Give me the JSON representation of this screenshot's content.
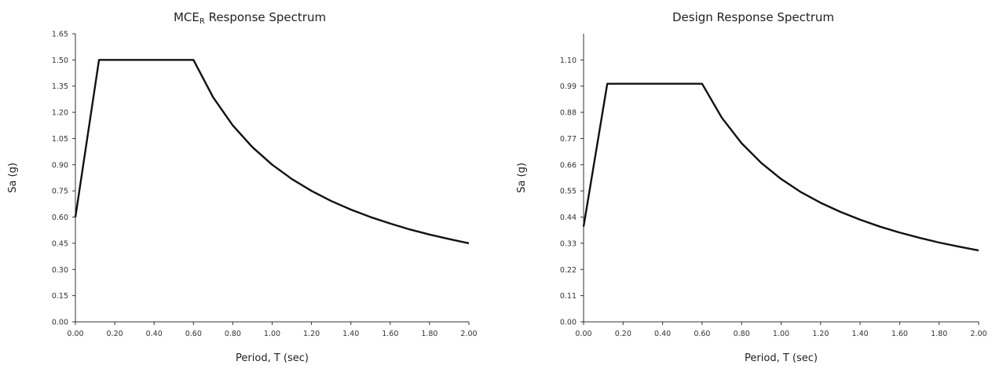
{
  "chart_data": [
    {
      "type": "line",
      "title": "MCE",
      "title_subscript": "R",
      "title_suffix": " Response Spectrum",
      "xlabel": "Period, T (sec)",
      "ylabel": "Sa (g)",
      "xlim": [
        0,
        2
      ],
      "ylim": [
        0,
        1.65
      ],
      "x_ticks": [
        "0.00",
        "0.20",
        "0.40",
        "0.60",
        "0.80",
        "1.00",
        "1.20",
        "1.40",
        "1.60",
        "1.80",
        "2.00"
      ],
      "y_ticks": [
        "0.00",
        "0.15",
        "0.30",
        "0.45",
        "0.60",
        "0.75",
        "0.90",
        "1.05",
        "1.20",
        "1.35",
        "1.50",
        "1.65"
      ],
      "grid": false,
      "series": [
        {
          "x": [
            0.0,
            0.12,
            0.6,
            0.7,
            0.8,
            0.9,
            1.0,
            1.1,
            1.2,
            1.3,
            1.4,
            1.5,
            1.6,
            1.7,
            1.8,
            1.9,
            2.0
          ],
          "y": [
            0.6,
            1.5,
            1.5,
            1.286,
            1.125,
            1.0,
            0.9,
            0.818,
            0.75,
            0.692,
            0.643,
            0.6,
            0.563,
            0.529,
            0.5,
            0.474,
            0.45
          ]
        }
      ]
    },
    {
      "type": "line",
      "title": "Design Response Spectrum",
      "title_subscript": "",
      "title_suffix": "",
      "xlabel": "Period, T (sec)",
      "ylabel": "Sa (g)",
      "xlim": [
        0,
        2
      ],
      "ylim": [
        0,
        1.21
      ],
      "x_ticks": [
        "0.00",
        "0.20",
        "0.40",
        "0.60",
        "0.80",
        "1.00",
        "1.20",
        "1.40",
        "1.60",
        "1.80",
        "2.00"
      ],
      "y_ticks": [
        "0.00",
        "0.11",
        "0.22",
        "0.33",
        "0.44",
        "0.55",
        "0.66",
        "0.77",
        "0.88",
        "0.99",
        "1.10"
      ],
      "grid": false,
      "series": [
        {
          "x": [
            0.0,
            0.12,
            0.6,
            0.7,
            0.8,
            0.9,
            1.0,
            1.1,
            1.2,
            1.3,
            1.4,
            1.5,
            1.6,
            1.7,
            1.8,
            1.9,
            2.0
          ],
          "y": [
            0.4,
            1.0,
            1.0,
            0.857,
            0.75,
            0.667,
            0.6,
            0.545,
            0.5,
            0.462,
            0.429,
            0.4,
            0.375,
            0.353,
            0.333,
            0.316,
            0.3
          ]
        }
      ]
    }
  ]
}
